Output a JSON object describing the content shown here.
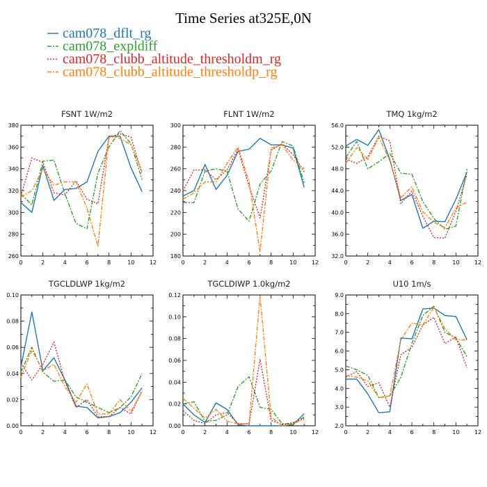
{
  "title": "Time Series at325E,0N",
  "legend": [
    {
      "label": "cam078_dflt_rg",
      "color": "#1f77b4",
      "dash": "solid"
    },
    {
      "label": "cam078_expldiff",
      "color": "#2ca02c",
      "dash": "dashdot"
    },
    {
      "label": "cam078_clubb_altitude_thresholdm_rg",
      "color": "#d62728",
      "dash": "dotted"
    },
    {
      "label": "cam078_clubb_altitude_thresholdp_rg",
      "color": "#ff7f0e",
      "dash": "dashdot"
    }
  ],
  "chart_data": [
    {
      "type": "line",
      "title": "FSNT   1W/m2",
      "x": [
        0,
        1,
        2,
        3,
        4,
        5,
        6,
        7,
        8,
        9,
        10,
        11
      ],
      "xlim": [
        0,
        12
      ],
      "ylim": [
        260,
        380
      ],
      "xticks": [
        0,
        2,
        4,
        6,
        8,
        10,
        12
      ],
      "yticks": [
        260,
        280,
        300,
        320,
        340,
        360,
        380
      ],
      "ytick_format": 0,
      "series": [
        {
          "name": "cam078_dflt_rg",
          "values": [
            309,
            300,
            343,
            311,
            321,
            322,
            328,
            356,
            370,
            370,
            341,
            319
          ]
        },
        {
          "name": "cam078_expldiff",
          "values": [
            317,
            307,
            347,
            348,
            317,
            290,
            285,
            336,
            360,
            375,
            363,
            330
          ]
        },
        {
          "name": "cam078_clubb_altitude_thresholdm_rg",
          "values": [
            315,
            350,
            346,
            318,
            316,
            329,
            312,
            308,
            369,
            372,
            369,
            335
          ]
        },
        {
          "name": "cam078_clubb_altitude_thresholdp_rg",
          "values": [
            314,
            320,
            340,
            325,
            328,
            328,
            304,
            269,
            370,
            368,
            362,
            338
          ]
        }
      ]
    },
    {
      "type": "line",
      "title": "FLNT   1W/m2",
      "x": [
        0,
        1,
        2,
        3,
        4,
        5,
        6,
        7,
        8,
        9,
        10,
        11
      ],
      "xlim": [
        0,
        12
      ],
      "ylim": [
        180,
        300
      ],
      "xticks": [
        0,
        2,
        4,
        6,
        8,
        10,
        12
      ],
      "yticks": [
        180,
        200,
        220,
        240,
        260,
        280,
        300
      ],
      "ytick_format": 0,
      "series": [
        {
          "name": "cam078_dflt_rg",
          "values": [
            235,
            240,
            264,
            241,
            254,
            276,
            278,
            288,
            282,
            282,
            279,
            243
          ]
        },
        {
          "name": "cam078_expldiff",
          "values": [
            229,
            229,
            258,
            260,
            258,
            223,
            212,
            246,
            258,
            285,
            281,
            247
          ]
        },
        {
          "name": "cam078_clubb_altitude_thresholdm_rg",
          "values": [
            240,
            259,
            259,
            250,
            259,
            278,
            244,
            215,
            277,
            283,
            273,
            257
          ]
        },
        {
          "name": "cam078_clubb_altitude_thresholdp_rg",
          "values": [
            232,
            238,
            248,
            248,
            265,
            280,
            248,
            184,
            279,
            282,
            268,
            260
          ]
        }
      ]
    },
    {
      "type": "line",
      "title": "TMQ   1kg/m2",
      "x": [
        0,
        1,
        2,
        3,
        4,
        5,
        6,
        7,
        8,
        9,
        10,
        11
      ],
      "xlim": [
        0,
        12
      ],
      "ylim": [
        32,
        56
      ],
      "xticks": [
        0,
        2,
        4,
        6,
        8,
        10,
        12
      ],
      "yticks": [
        32,
        36,
        40,
        44,
        48,
        52,
        56
      ],
      "ytick_format": 1,
      "series": [
        {
          "name": "cam078_dflt_rg",
          "values": [
            52.2,
            53.4,
            52.3,
            55.2,
            49.7,
            42.2,
            43.3,
            37.1,
            38.4,
            38.3,
            42.4,
            47.4
          ]
        },
        {
          "name": "cam078_expldiff",
          "values": [
            50.1,
            53.0,
            48.0,
            49.3,
            50.8,
            47.2,
            47.0,
            42.0,
            38.9,
            36.9,
            37.5,
            48.0
          ]
        },
        {
          "name": "cam078_clubb_altitude_thresholdm_rg",
          "values": [
            49.8,
            49.0,
            50.2,
            54.0,
            53.1,
            41.6,
            43.9,
            39.3,
            35.4,
            35.3,
            40.2,
            47.0
          ]
        },
        {
          "name": "cam078_clubb_altitude_thresholdp_rg",
          "values": [
            49.0,
            51.9,
            49.7,
            53.8,
            49.5,
            42.7,
            44.7,
            40.1,
            38.2,
            37.2,
            40.8,
            41.9
          ]
        }
      ]
    },
    {
      "type": "line",
      "title": "TGCLDLWP   1kg/m2",
      "x": [
        0,
        1,
        2,
        3,
        4,
        5,
        6,
        7,
        8,
        9,
        10,
        11
      ],
      "xlim": [
        0,
        12
      ],
      "ylim": [
        0.0,
        0.1
      ],
      "xticks": [
        0,
        2,
        4,
        6,
        8,
        10,
        12
      ],
      "yticks": [
        0.0,
        0.02,
        0.04,
        0.06,
        0.08,
        0.1
      ],
      "ytick_format": 2,
      "series": [
        {
          "name": "cam078_dflt_rg",
          "values": [
            0.045,
            0.087,
            0.042,
            0.052,
            0.035,
            0.015,
            0.014,
            0.006,
            0.007,
            0.01,
            0.018,
            0.029
          ]
        },
        {
          "name": "cam078_expldiff",
          "values": [
            0.041,
            0.06,
            0.041,
            0.034,
            0.035,
            0.022,
            0.018,
            0.014,
            0.01,
            0.014,
            0.022,
            0.04
          ]
        },
        {
          "name": "cam078_clubb_altitude_thresholdm_rg",
          "values": [
            0.048,
            0.035,
            0.047,
            0.064,
            0.034,
            0.014,
            0.02,
            0.007,
            0.007,
            0.014,
            0.009,
            0.027
          ]
        },
        {
          "name": "cam078_clubb_altitude_thresholdp_rg",
          "values": [
            0.037,
            0.058,
            0.042,
            0.047,
            0.03,
            0.018,
            0.032,
            0.009,
            0.009,
            0.02,
            0.011,
            0.026
          ]
        }
      ]
    },
    {
      "type": "line",
      "title": "TGCLDIWP   1.0kg/m2",
      "x": [
        0,
        1,
        2,
        3,
        4,
        5,
        6,
        7,
        8,
        9,
        10,
        11
      ],
      "xlim": [
        0,
        12
      ],
      "ylim": [
        0.0,
        0.12
      ],
      "xticks": [
        0,
        2,
        4,
        6,
        8,
        10,
        12
      ],
      "yticks": [
        0.0,
        0.02,
        0.04,
        0.06,
        0.08,
        0.1,
        0.12
      ],
      "ytick_format": 2,
      "series": [
        {
          "name": "cam078_dflt_rg",
          "values": [
            0.02,
            0.01,
            0.003,
            0.021,
            0.015,
            0.001,
            0.0,
            0.0,
            0.0,
            0.0,
            0.001,
            0.011
          ]
        },
        {
          "name": "cam078_expldiff",
          "values": [
            0.02,
            0.022,
            0.004,
            0.005,
            0.01,
            0.036,
            0.045,
            0.017,
            0.015,
            0.002,
            0.002,
            0.008
          ]
        },
        {
          "name": "cam078_clubb_altitude_thresholdm_rg",
          "values": [
            0.014,
            0.005,
            0.002,
            0.01,
            0.012,
            0.002,
            0.002,
            0.061,
            0.005,
            0.001,
            0.003,
            0.007
          ]
        },
        {
          "name": "cam078_clubb_altitude_thresholdp_rg",
          "values": [
            0.025,
            0.016,
            0.007,
            0.015,
            0.004,
            0.002,
            0.002,
            0.119,
            0.008,
            0.0,
            0.002,
            0.006
          ]
        }
      ]
    },
    {
      "type": "line",
      "title": "U10   1m/s",
      "x": [
        0,
        1,
        2,
        3,
        4,
        5,
        6,
        7,
        8,
        9,
        10,
        11
      ],
      "xlim": [
        0,
        12
      ],
      "ylim": [
        2.0,
        9.0
      ],
      "xticks": [
        0,
        2,
        4,
        6,
        8,
        10,
        12
      ],
      "yticks": [
        2.0,
        3.0,
        4.0,
        5.0,
        6.0,
        7.0,
        8.0,
        9.0
      ],
      "ytick_format": 1,
      "series": [
        {
          "name": "cam078_dflt_rg",
          "values": [
            4.5,
            4.5,
            3.7,
            2.7,
            2.75,
            6.7,
            6.65,
            8.25,
            8.3,
            7.9,
            7.85,
            6.6
          ]
        },
        {
          "name": "cam078_expldiff",
          "values": [
            5.2,
            5.0,
            4.7,
            3.5,
            3.6,
            4.6,
            6.4,
            7.9,
            8.4,
            7.0,
            6.7,
            5.7
          ]
        },
        {
          "name": "cam078_clubb_altitude_thresholdm_rg",
          "values": [
            4.6,
            4.9,
            4.1,
            4.3,
            3.0,
            5.8,
            6.2,
            7.4,
            7.8,
            6.4,
            6.75,
            5.1
          ]
        },
        {
          "name": "cam078_clubb_altitude_thresholdp_rg",
          "values": [
            4.7,
            4.6,
            4.4,
            3.5,
            3.6,
            6.6,
            7.5,
            7.4,
            8.35,
            7.2,
            6.6,
            6.6
          ]
        }
      ]
    }
  ]
}
